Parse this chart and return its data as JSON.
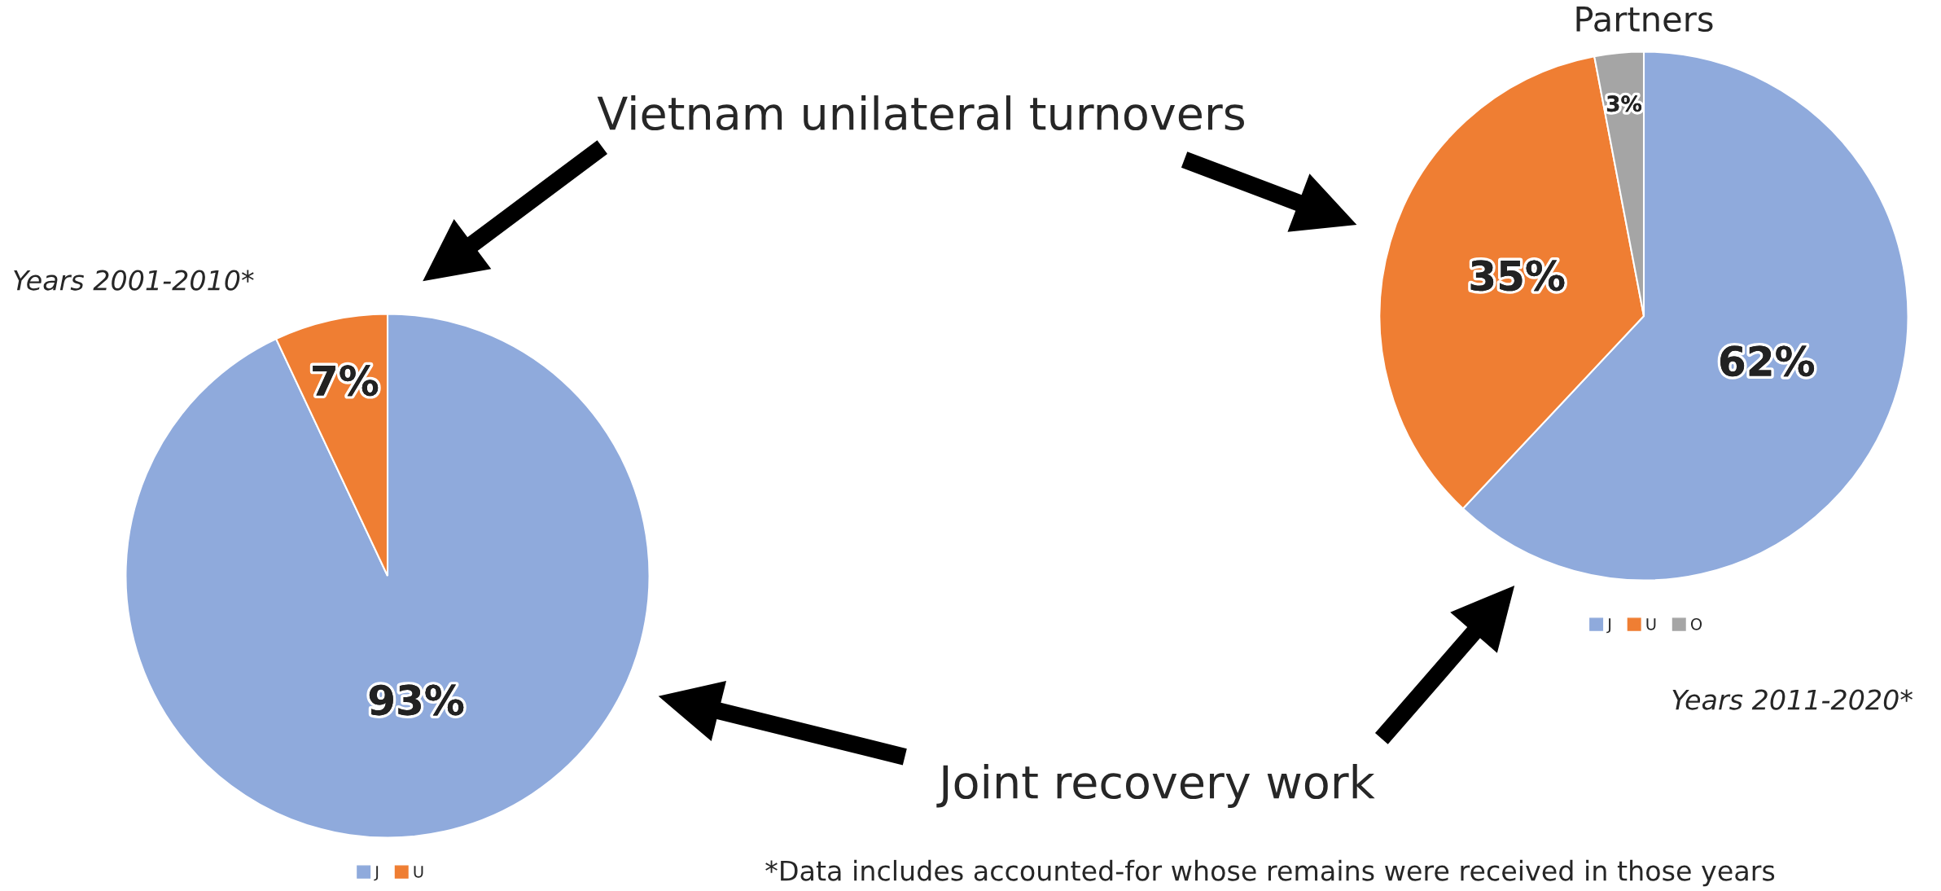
{
  "chart_data": [
    {
      "type": "pie",
      "title": "Years 2001-2010*",
      "categories": [
        "J",
        "U"
      ],
      "values": [
        93,
        7
      ],
      "colors": [
        "#8faadc",
        "#ef7e33"
      ],
      "value_labels": [
        "93%",
        "7%"
      ],
      "legend": "bottom",
      "annotations": [
        "Vietnam unilateral turnovers",
        "Joint recovery work",
        "*Data includes accounted-for whose remains were received in those years"
      ]
    },
    {
      "type": "pie",
      "title": "Years 2011-2020*",
      "categories": [
        "J",
        "U",
        "O"
      ],
      "values": [
        62,
        35,
        3
      ],
      "colors": [
        "#8faadc",
        "#ef7e33",
        "#a5a5a5"
      ],
      "value_labels": [
        "62%",
        "35%",
        "3%"
      ],
      "legend": "bottom",
      "annotations": [
        "Partners"
      ]
    }
  ]
}
